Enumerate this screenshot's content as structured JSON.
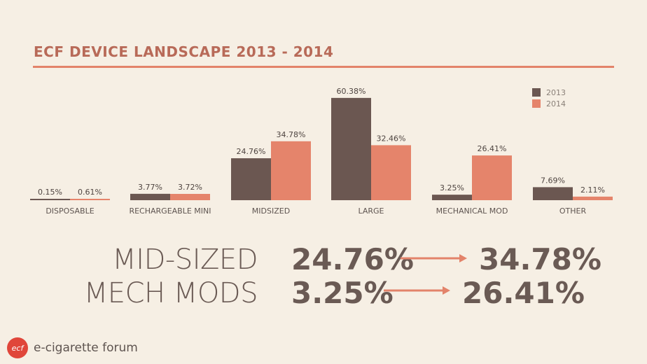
{
  "title": "ECF DEVICE LANDSCAPE 2013 - 2014",
  "colors": {
    "y2013": "#6b5751",
    "y2014": "#e5846b",
    "accent": "#e3836a"
  },
  "chart_data": {
    "type": "bar",
    "categories": [
      "DISPOSABLE",
      "RECHARGEABLE MINI",
      "MIDSIZED",
      "LARGE",
      "MECHANICAL MOD",
      "OTHER"
    ],
    "series": [
      {
        "name": "2013",
        "values": [
          0.15,
          3.77,
          24.76,
          60.38,
          3.25,
          7.69
        ],
        "labels": [
          "0.15%",
          "3.77%",
          "24.76%",
          "60.38%",
          "3.25%",
          "7.69%"
        ]
      },
      {
        "name": "2014",
        "values": [
          0.61,
          3.72,
          34.78,
          32.46,
          26.41,
          2.11
        ],
        "labels": [
          "0.61%",
          "3.72%",
          "34.78%",
          "32.46%",
          "26.41%",
          "2.11%"
        ]
      }
    ],
    "legend": "top-right",
    "grid": false
  },
  "highlights": [
    {
      "label": "MID-SIZED",
      "from": "24.76%",
      "to": "34.78%"
    },
    {
      "label": "MECH MODS",
      "from": "3.25%",
      "to": "26.41%"
    }
  ],
  "footer": {
    "logo_badge": "ecf",
    "logo_text": "e-cigarette forum"
  }
}
